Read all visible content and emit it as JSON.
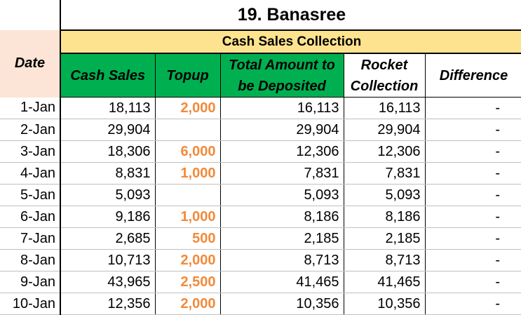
{
  "title": "19. Banasree",
  "group_header": "Cash Sales Collection",
  "columns": {
    "date": "Date",
    "cash_sales": "Cash Sales",
    "topup": "Topup",
    "total": "Total Amount to be Deposited",
    "rocket": "Rocket Collection",
    "difference": "Difference"
  },
  "colors": {
    "header_green": "#00b050",
    "group_yellow": "#fde38f",
    "date_peach": "#fce4d6",
    "topup_orange": "#f28a3a"
  },
  "rows": [
    {
      "date": "1-Jan",
      "cash": "18,113",
      "topup": "2,000",
      "total": "16,113",
      "rocket": "16,113",
      "diff": "-"
    },
    {
      "date": "2-Jan",
      "cash": "29,904",
      "topup": "",
      "total": "29,904",
      "rocket": "29,904",
      "diff": "-"
    },
    {
      "date": "3-Jan",
      "cash": "18,306",
      "topup": "6,000",
      "total": "12,306",
      "rocket": "12,306",
      "diff": "-"
    },
    {
      "date": "4-Jan",
      "cash": "8,831",
      "topup": "1,000",
      "total": "7,831",
      "rocket": "7,831",
      "diff": "-"
    },
    {
      "date": "5-Jan",
      "cash": "5,093",
      "topup": "",
      "total": "5,093",
      "rocket": "5,093",
      "diff": "-"
    },
    {
      "date": "6-Jan",
      "cash": "9,186",
      "topup": "1,000",
      "total": "8,186",
      "rocket": "8,186",
      "diff": "-"
    },
    {
      "date": "7-Jan",
      "cash": "2,685",
      "topup": "500",
      "total": "2,185",
      "rocket": "2,185",
      "diff": "-"
    },
    {
      "date": "8-Jan",
      "cash": "10,713",
      "topup": "2,000",
      "total": "8,713",
      "rocket": "8,713",
      "diff": "-"
    },
    {
      "date": "9-Jan",
      "cash": "43,965",
      "topup": "2,500",
      "total": "41,465",
      "rocket": "41,465",
      "diff": "-"
    },
    {
      "date": "10-Jan",
      "cash": "12,356",
      "topup": "2,000",
      "total": "10,356",
      "rocket": "10,356",
      "diff": "-"
    }
  ]
}
